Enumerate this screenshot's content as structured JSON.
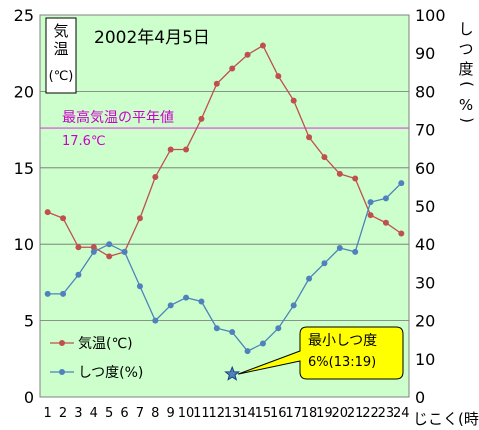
{
  "chart_data": {
    "type": "line",
    "title": "2002年4月5日",
    "x": [
      1,
      2,
      3,
      4,
      5,
      6,
      7,
      8,
      9,
      10,
      11,
      12,
      13,
      14,
      15,
      16,
      17,
      18,
      19,
      20,
      21,
      22,
      23,
      24
    ],
    "xlabel": "じこく(時)",
    "y_left": {
      "label": "気温(℃)",
      "range": [
        0,
        25
      ],
      "ticks": [
        0,
        5,
        10,
        15,
        20,
        25
      ]
    },
    "y_right": {
      "label": "しつ度(%)",
      "range": [
        0,
        100
      ],
      "ticks": [
        0,
        10,
        20,
        30,
        40,
        50,
        60,
        70,
        80,
        90,
        100
      ]
    },
    "grid": "horizontal",
    "series": [
      {
        "name": "気温(℃)",
        "axis": "left",
        "color": "#c0504d",
        "values": [
          12.1,
          11.7,
          9.8,
          9.8,
          9.2,
          9.5,
          11.7,
          14.4,
          16.2,
          16.2,
          18.2,
          20.5,
          21.5,
          22.4,
          23.0,
          21.0,
          19.4,
          17.0,
          15.7,
          14.6,
          14.3,
          11.9,
          11.4,
          10.7
        ]
      },
      {
        "name": "しつ度(%)",
        "axis": "right",
        "color": "#4f81bd",
        "values": [
          27,
          27,
          32,
          38,
          40,
          38,
          29,
          20,
          24,
          26,
          25,
          18,
          17,
          12,
          14,
          18,
          24,
          31,
          35,
          39,
          38,
          51,
          52,
          56
        ]
      }
    ],
    "reference_line": {
      "label": "最高気温の平年値",
      "value_label": "17.6℃",
      "value": 17.6,
      "axis": "left",
      "color": "#e040e0"
    },
    "annotation": {
      "line1": "最小しつ度",
      "line2": "6%(13:19)",
      "x": 13,
      "y": 6,
      "axis": "right"
    },
    "legend": {
      "placement": "bottom-left"
    }
  }
}
